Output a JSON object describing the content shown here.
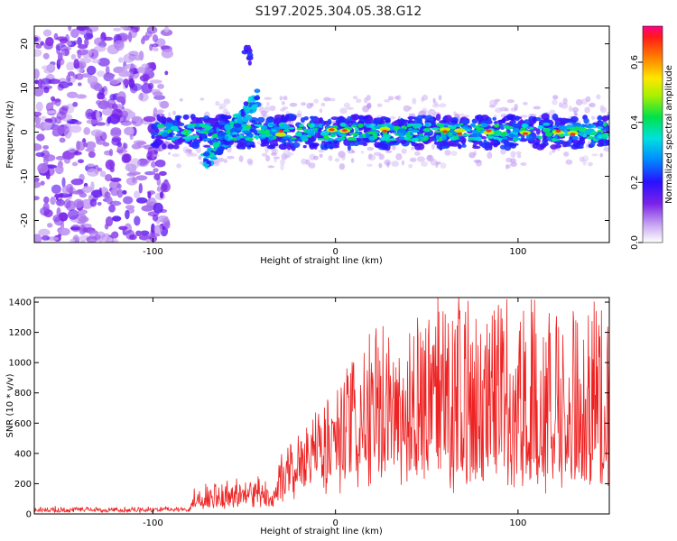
{
  "title": "S197.2025.304.05.38.G12",
  "chart_data": [
    {
      "type": "heatmap",
      "name": "spectrogram",
      "xlabel": "Height of straight line (km)",
      "ylabel": "Frequency (Hz)",
      "xlim": [
        -165,
        150
      ],
      "ylim": [
        -25,
        24
      ],
      "xticks": [
        -100,
        0,
        100
      ],
      "yticks": [
        -20,
        -10,
        0,
        10,
        20
      ],
      "colorbar": {
        "label": "Normalized spectral amplitude",
        "range": [
          0.0,
          0.72
        ],
        "ticks": [
          0.0,
          0.2,
          0.4,
          0.6
        ]
      },
      "regions": [
        {
          "description_type": "noise",
          "x_range": [
            -165,
            -92
          ],
          "y_range": [
            -25,
            24
          ],
          "level": 0.12
        },
        {
          "description_type": "signal_band",
          "x_range": [
            -100,
            150
          ],
          "center_hz": 0,
          "half_width_hz": 3,
          "level": 0.35
        },
        {
          "description_type": "hook",
          "x_range": [
            -72,
            -45
          ],
          "from_hz": -7,
          "to_hz": 8
        },
        {
          "description_type": "isolated_blob",
          "x": -48,
          "y_hz": 17
        }
      ]
    },
    {
      "type": "line",
      "name": "snr",
      "xlabel": "Height of straight line (km)",
      "ylabel": "SNR (10 * v/v)",
      "xlim": [
        -165,
        150
      ],
      "ylim": [
        0,
        1430
      ],
      "xticks": [
        -100,
        0,
        100
      ],
      "yticks": [
        0,
        200,
        400,
        600,
        800,
        1000,
        1200,
        1400
      ],
      "color": "#ee2222",
      "envelope": [
        {
          "x": -165,
          "base": 20,
          "amp": 30
        },
        {
          "x": -80,
          "base": 20,
          "amp": 30
        },
        {
          "x": -78,
          "base": 60,
          "amp": 120
        },
        {
          "x": -40,
          "base": 80,
          "amp": 180
        },
        {
          "x": -35,
          "base": 60,
          "amp": 80
        },
        {
          "x": -28,
          "base": 150,
          "amp": 300
        },
        {
          "x": -10,
          "base": 250,
          "amp": 500
        },
        {
          "x": 20,
          "base": 300,
          "amp": 900
        },
        {
          "x": 50,
          "base": 300,
          "amp": 1100
        },
        {
          "x": 90,
          "base": 300,
          "amp": 1100
        },
        {
          "x": 150,
          "base": 300,
          "amp": 1100
        }
      ]
    }
  ]
}
